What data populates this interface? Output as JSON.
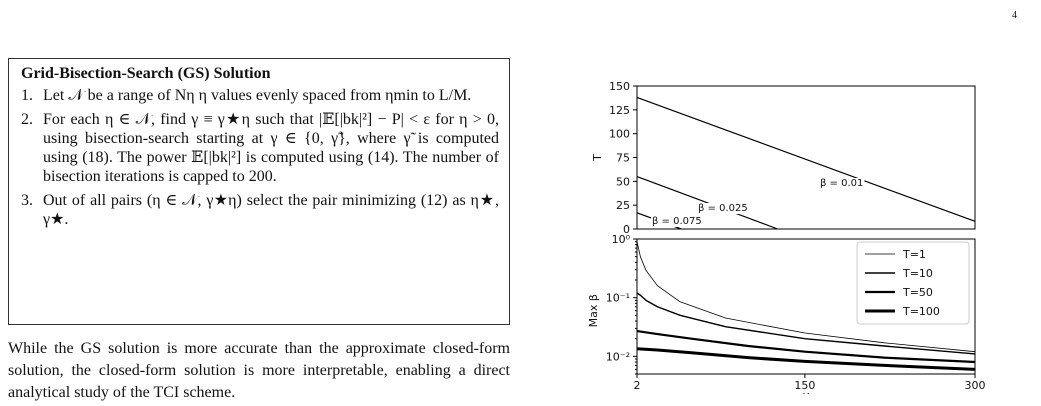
{
  "page_number": "4",
  "algorithm": {
    "title": "Grid-Bisection-Search (GS) Solution",
    "steps": [
      {
        "num": "1.",
        "text": "Let 𝒩 be a range of Nη η values evenly spaced from ηmin to L/M."
      },
      {
        "num": "2.",
        "text": "For each η ∈ 𝒩, find γ ≡ γ★η such that |𝔼[|bk|²] − P| < ε for η > 0, using bisection-search starting at γ ∈ {0, γ̃}, where γ̃ is computed using (18). The power 𝔼[|bk|²] is computed using (14). The number of bisection iterations is capped to 200."
      },
      {
        "num": "3.",
        "text": "Out of all pairs (η ∈ 𝒩, γ★η) select the pair minimizing (12) as η★, γ★."
      }
    ]
  },
  "paragraph": "While the GS solution is more accurate than the approximate closed-form solution, the closed-form solution is more interpretable, enabling a direct analytical study of the TCI scheme.",
  "chart_data": [
    {
      "type": "line",
      "ylabel": "T",
      "xlim": [
        2,
        300
      ],
      "ylim": [
        0,
        150
      ],
      "yticks": [
        0,
        25,
        50,
        75,
        100,
        125,
        150
      ],
      "grid": false,
      "series": [
        {
          "name": "β = 0.01",
          "x": [
            2,
            300
          ],
          "y": [
            138,
            8
          ]
        },
        {
          "name": "β = 0.025",
          "x": [
            2,
            126
          ],
          "y": [
            55,
            0
          ]
        },
        {
          "name": "β = 0.075",
          "x": [
            2,
            41
          ],
          "y": [
            17,
            0
          ]
        }
      ]
    },
    {
      "type": "line",
      "xlabel": "K",
      "ylabel": "Max β",
      "xlim": [
        2,
        300
      ],
      "xticks": [
        2,
        150,
        300
      ],
      "ylim": [
        0.005,
        1
      ],
      "yscale": "log",
      "yticks": [
        "10⁰",
        "10⁻¹",
        "10⁻²"
      ],
      "legend": "top-right",
      "series": [
        {
          "name": "T=1",
          "x": [
            2,
            5,
            10,
            20,
            40,
            80,
            150,
            220,
            300
          ],
          "y": [
            0.9,
            0.5,
            0.29,
            0.16,
            0.085,
            0.045,
            0.025,
            0.017,
            0.012
          ]
        },
        {
          "name": "T=10",
          "x": [
            2,
            5,
            10,
            20,
            40,
            80,
            150,
            220,
            300
          ],
          "y": [
            0.12,
            0.11,
            0.09,
            0.07,
            0.05,
            0.032,
            0.02,
            0.015,
            0.011
          ]
        },
        {
          "name": "T=50",
          "x": [
            2,
            20,
            50,
            100,
            150,
            220,
            300
          ],
          "y": [
            0.027,
            0.024,
            0.02,
            0.015,
            0.012,
            0.0095,
            0.008
          ]
        },
        {
          "name": "T=100",
          "x": [
            2,
            20,
            50,
            100,
            150,
            220,
            300
          ],
          "y": [
            0.0135,
            0.0128,
            0.0115,
            0.0095,
            0.0082,
            0.007,
            0.006
          ]
        }
      ]
    }
  ]
}
